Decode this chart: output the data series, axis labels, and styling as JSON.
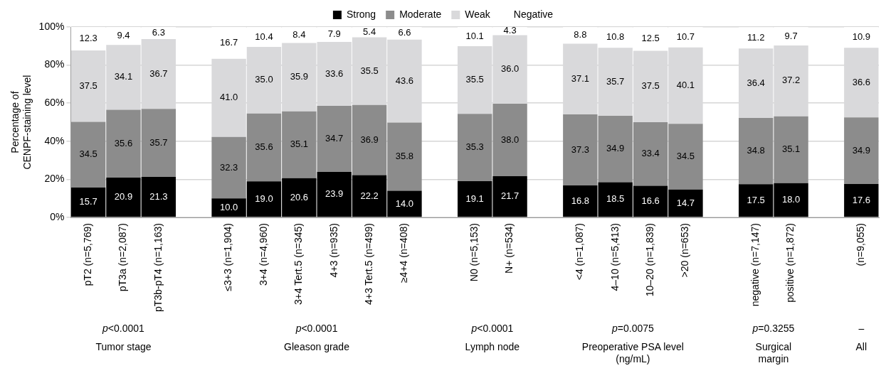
{
  "chart_data": {
    "type": "bar",
    "stacked": true,
    "ylabel": "Percentage of\nCENPF-staining level",
    "categories": [
      "pT2 (n=5,769)",
      "pT3a (n=2,087)",
      "pT3b-pT4 (n=1,163)",
      null,
      "≤3+3 (n=1,904)",
      "3+4 (n=4,960)",
      "3+4 Tert.5 (n=345)",
      "4+3 (n=935)",
      "4+3 Tert.5 (n=499)",
      "≥4+4 (n=408)",
      null,
      "N0 (n=5,153)",
      "N+ (n=534)",
      null,
      "<4 (n=1,087)",
      "4–10 (n=5,413)",
      "10–20 (n=1,839)",
      ">20 (n=653)",
      null,
      "negative (n=7,147)",
      "positive (n=1,872)",
      null,
      "(n=9,055)"
    ],
    "series": [
      {
        "name": "Strong",
        "color": "#000000",
        "values": [
          15.7,
          20.9,
          21.3,
          null,
          10.0,
          19.0,
          20.6,
          23.9,
          22.2,
          14.0,
          null,
          19.1,
          21.7,
          null,
          16.8,
          18.5,
          16.6,
          14.7,
          null,
          17.5,
          18.0,
          null,
          17.6
        ],
        "value_labels": [
          "15.7",
          "20.9",
          "21.3",
          null,
          "10.0",
          "19.0",
          "20.6",
          "23.9",
          "22.2",
          "14.0",
          null,
          "19.1",
          "21.7",
          null,
          "16.8",
          "18.5",
          "16.6",
          "14.7",
          null,
          "17.5",
          "18.0",
          null,
          "17.6"
        ]
      },
      {
        "name": "Moderate",
        "color": "#8c8c8c",
        "values": [
          34.5,
          35.6,
          35.7,
          null,
          32.3,
          35.6,
          35.1,
          34.7,
          36.9,
          35.8,
          null,
          35.3,
          38.0,
          null,
          37.3,
          34.9,
          33.4,
          34.5,
          null,
          34.8,
          35.1,
          null,
          34.9
        ],
        "value_labels": [
          "34.5",
          "35.6",
          "35.7",
          null,
          "32.3",
          "35.6",
          "35.1",
          "34.7",
          "36.9",
          "35.8",
          null,
          "35.3",
          "38.0",
          null,
          "37.3",
          "34.9",
          "33.4",
          "34.5",
          null,
          "34.8",
          "35.1",
          null,
          "34.9"
        ]
      },
      {
        "name": "Weak",
        "color": "#d9d9db",
        "values": [
          37.5,
          34.1,
          36.7,
          null,
          41.0,
          35.0,
          35.9,
          33.6,
          35.5,
          43.6,
          null,
          35.5,
          36.0,
          null,
          37.1,
          35.7,
          37.5,
          40.1,
          null,
          36.4,
          37.2,
          null,
          36.6
        ],
        "value_labels": [
          "37.5",
          "34.1",
          "36.7",
          null,
          "41.0",
          "35.0",
          "35.9",
          "33.6",
          "35.5",
          "43.6",
          null,
          "35.5",
          "36.0",
          null,
          "37.1",
          "35.7",
          "37.5",
          "40.1",
          null,
          "36.4",
          "37.2",
          null,
          "36.6"
        ]
      },
      {
        "name": "Negative",
        "color": "#ffffff",
        "values": [
          12.3,
          9.4,
          6.3,
          null,
          16.7,
          10.4,
          8.4,
          7.9,
          5.4,
          6.6,
          null,
          10.1,
          4.3,
          null,
          8.8,
          10.8,
          12.5,
          10.7,
          null,
          11.2,
          9.7,
          null,
          10.9
        ],
        "value_labels": [
          "12.3",
          "9.4",
          "6.3",
          null,
          "16.7",
          "10.4",
          "8.4",
          "7.9",
          "5.4",
          "6.6",
          null,
          "10.1",
          "4.3",
          null,
          "8.8",
          "10.8",
          "12.5",
          "10.7",
          null,
          "11.2",
          "9.7",
          null,
          "10.9"
        ]
      }
    ],
    "ylim": [
      0,
      100
    ],
    "yticks": [
      {
        "value": 0,
        "label": "0%"
      },
      {
        "value": 20,
        "label": "20%"
      },
      {
        "value": 40,
        "label": "40%"
      },
      {
        "value": 60,
        "label": "60%"
      },
      {
        "value": 80,
        "label": "80%"
      },
      {
        "value": 100,
        "label": "100%"
      }
    ],
    "grid": "y",
    "legend": "top",
    "annotations": [
      "p<0.0001",
      "Tumor stage",
      "p<0.0001",
      "Gleason grade",
      "p<0.0001",
      "Lymph node",
      "p=0.0075",
      "Preoperative PSA level (ng/mL)",
      "p=0.3255",
      "Surgical margin",
      "–",
      "All"
    ]
  }
}
